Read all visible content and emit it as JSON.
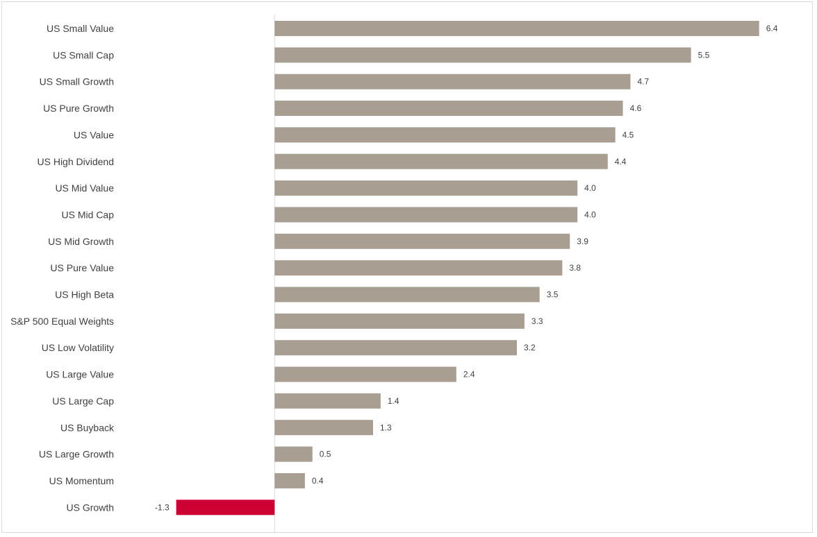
{
  "chart_data": {
    "type": "bar",
    "orientation": "horizontal",
    "categories": [
      "US Small Value",
      "US Small Cap",
      "US Small Growth",
      "US Pure Growth",
      "US Value",
      "US High Dividend",
      "US Mid Value",
      "US Mid Cap",
      "US Mid Growth",
      "US Pure Value",
      "US High Beta",
      "S&P 500 Equal Weights",
      "US Low Volatility",
      "US Large Value",
      "US Large Cap",
      "US Buyback",
      "US Large Growth",
      "US Momentum",
      "US Growth"
    ],
    "values": [
      6.4,
      5.5,
      4.7,
      4.6,
      4.5,
      4.4,
      4.0,
      4.0,
      3.9,
      3.8,
      3.5,
      3.3,
      3.2,
      2.4,
      1.4,
      1.3,
      0.5,
      0.4,
      -1.3
    ],
    "value_labels": [
      "6.4",
      "5.5",
      "4.7",
      "4.6",
      "4.5",
      "4.4",
      "4.0",
      "4.0",
      "3.9",
      "3.8",
      "3.5",
      "3.3",
      "3.2",
      "2.4",
      "1.4",
      "1.3",
      "0.5",
      "0.4",
      "-1.3"
    ],
    "title": "",
    "xlabel": "",
    "ylabel": "",
    "xlim": [
      -3.6,
      7.1
    ],
    "grid": false,
    "legend": "none",
    "colors": {
      "positive": "#a99e92",
      "negative": "#cc0033",
      "axis": "#d9d9d9",
      "text": "#404040"
    }
  }
}
